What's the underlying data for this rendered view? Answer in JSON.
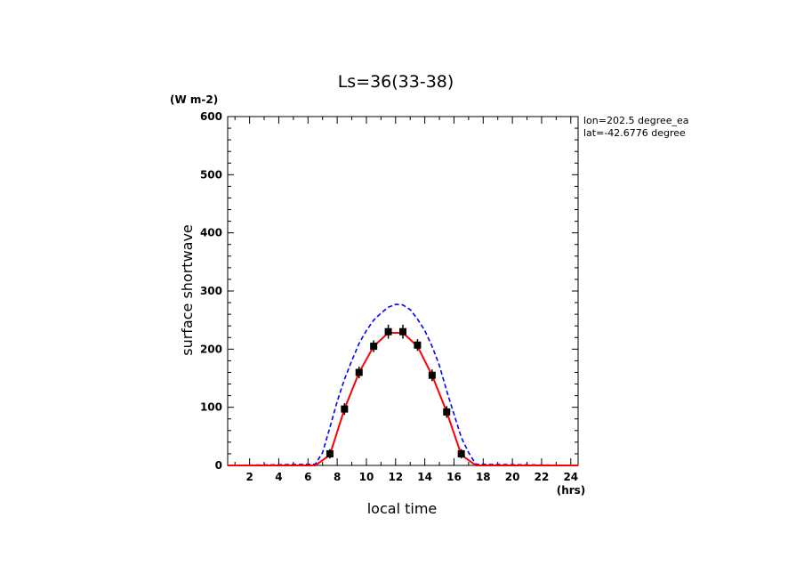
{
  "chart_data": {
    "type": "line",
    "title": "Ls=36(33-38)",
    "xlabel": "local time",
    "ylabel": "surface shortwave",
    "y_units": "(W m-2)",
    "x_units": "(hrs)",
    "annotation_lines": [
      "lon=202.5 degree_ea",
      "lat=-42.6776 degree"
    ],
    "xlim": [
      0.5,
      24.5
    ],
    "ylim": [
      0,
      600
    ],
    "xticks": [
      2,
      4,
      6,
      8,
      10,
      12,
      14,
      16,
      18,
      20,
      22,
      24
    ],
    "yticks": [
      0,
      100,
      200,
      300,
      400,
      500,
      600
    ],
    "grid": false,
    "series": [
      {
        "style": "dashed",
        "color": "#0000ff",
        "x": [
          0.5,
          6.5,
          7.0,
          7.5,
          8.0,
          8.5,
          9.0,
          9.5,
          10.0,
          10.5,
          11.0,
          11.5,
          12.0,
          12.5,
          13.0,
          13.5,
          14.0,
          14.5,
          15.0,
          15.5,
          16.0,
          16.5,
          17.0,
          17.5,
          24.5
        ],
        "y": [
          0,
          2,
          22,
          65,
          110,
          148,
          180,
          210,
          232,
          250,
          262,
          272,
          277,
          276,
          268,
          252,
          232,
          205,
          172,
          128,
          88,
          48,
          22,
          2,
          0
        ]
      },
      {
        "style": "solid",
        "color": "#ff0000",
        "x": [
          0.5,
          6.5,
          7.5,
          8.5,
          9.5,
          10.5,
          11.5,
          12.5,
          13.5,
          14.5,
          15.5,
          16.5,
          17.5,
          24.5
        ],
        "y": [
          0,
          0,
          18,
          97,
          160,
          205,
          228,
          228,
          205,
          155,
          92,
          18,
          0,
          0
        ]
      },
      {
        "style": "markers",
        "color": "#000000",
        "x": [
          7.5,
          8.5,
          9.5,
          10.5,
          11.5,
          12.5,
          13.5,
          14.5,
          15.5,
          16.5
        ],
        "y": [
          20,
          97,
          160,
          205,
          230,
          230,
          207,
          155,
          92,
          20
        ],
        "err": [
          8,
          10,
          10,
          10,
          12,
          12,
          10,
          10,
          10,
          8
        ]
      }
    ]
  }
}
